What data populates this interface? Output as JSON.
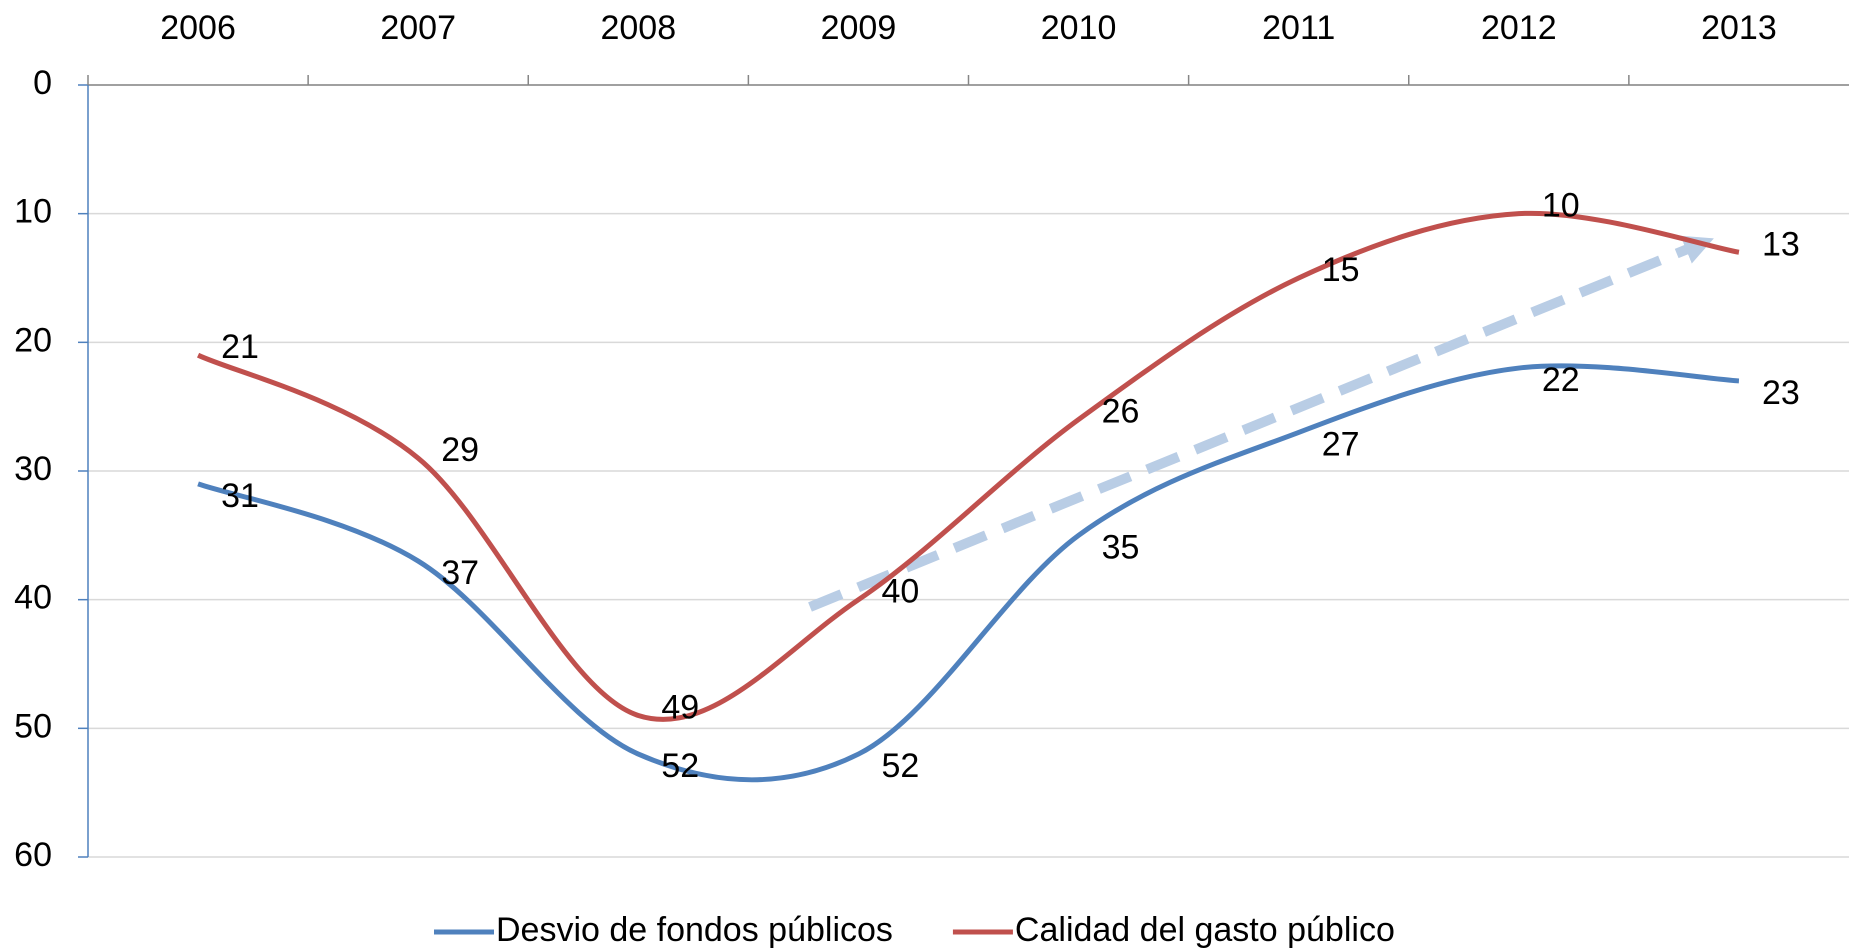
{
  "chart_data": {
    "type": "line",
    "categories": [
      "2006",
      "2007",
      "2008",
      "2009",
      "2010",
      "2011",
      "2012",
      "2013"
    ],
    "series": [
      {
        "name": "Desvio de fondos públicos",
        "color": "#4f81bd",
        "values": [
          31,
          37,
          52,
          52,
          35,
          27,
          22,
          23
        ]
      },
      {
        "name": "Calidad del gasto público",
        "color": "#c0504d",
        "values": [
          21,
          29,
          49,
          40,
          26,
          15,
          10,
          13
        ]
      }
    ],
    "ylim": [
      0,
      60
    ],
    "yticks": [
      0,
      10,
      20,
      30,
      40,
      50,
      60
    ],
    "y_inverted": true,
    "grid": true,
    "smooth": true,
    "legend": "bottom"
  }
}
